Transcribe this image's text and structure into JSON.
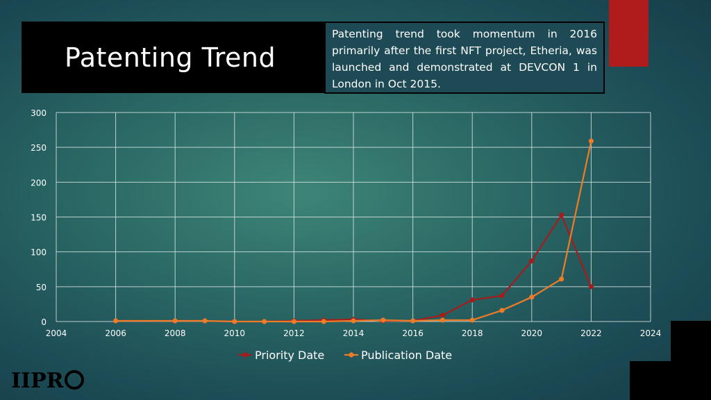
{
  "title": "Patenting Trend",
  "note": "Patenting trend took momentum in 2016 primarily after the first NFT project, Etheria, was launched and demonstrated at DEVCON 1 in London in Oct 2015.",
  "logo_text": "IIPRD",
  "colors": {
    "priority": "#a51c1c",
    "publication": "#ec7c27",
    "accent_red": "#b01c1c"
  },
  "chart_data": {
    "type": "line",
    "xlim": [
      2004,
      2024
    ],
    "ylim": [
      0,
      300
    ],
    "x_ticks": [
      2004,
      2006,
      2008,
      2010,
      2012,
      2014,
      2016,
      2018,
      2020,
      2022,
      2024
    ],
    "y_ticks": [
      0,
      50,
      100,
      150,
      200,
      250,
      300
    ],
    "grid": true,
    "legend_position": "bottom",
    "series": [
      {
        "name": "Priority Date",
        "points": [
          [
            2006,
            1
          ],
          [
            2008,
            1
          ],
          [
            2009,
            1
          ],
          [
            2010,
            0
          ],
          [
            2011,
            0
          ],
          [
            2012,
            1
          ],
          [
            2013,
            2
          ],
          [
            2014,
            3
          ],
          [
            2015,
            1
          ],
          [
            2016,
            1
          ],
          [
            2017,
            9
          ],
          [
            2018,
            31
          ],
          [
            2019,
            37
          ],
          [
            2020,
            87
          ],
          [
            2021,
            153
          ],
          [
            2022,
            50
          ]
        ]
      },
      {
        "name": "Publication Date",
        "points": [
          [
            2006,
            1
          ],
          [
            2008,
            1
          ],
          [
            2009,
            1
          ],
          [
            2010,
            0
          ],
          [
            2011,
            0
          ],
          [
            2012,
            0
          ],
          [
            2013,
            0
          ],
          [
            2014,
            1
          ],
          [
            2015,
            2
          ],
          [
            2016,
            1
          ],
          [
            2017,
            2
          ],
          [
            2018,
            2
          ],
          [
            2019,
            16
          ],
          [
            2020,
            35
          ],
          [
            2021,
            61
          ],
          [
            2022,
            259
          ]
        ]
      }
    ]
  }
}
